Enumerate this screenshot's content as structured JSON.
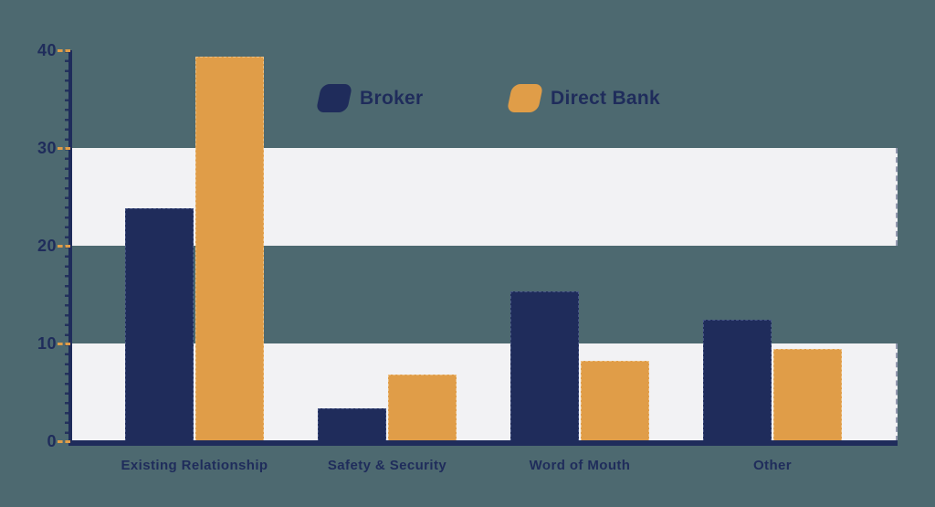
{
  "chart": {
    "background_color": "#4D6970",
    "band_color": "#F2F2F4",
    "axis_color": "#1F2C5B",
    "tick_mark_color": "#E09D48",
    "text_color": "#1F2C5B"
  },
  "legend": {
    "items": [
      {
        "label": "Broker",
        "color": "#1F2C5B"
      },
      {
        "label": "Direct Bank",
        "color": "#E09D48"
      }
    ]
  },
  "chart_data": {
    "type": "bar",
    "title": "",
    "xlabel": "",
    "ylabel": "",
    "categories": [
      "Existing Relationship",
      "Safety & Security",
      "Word of Mouth",
      "Other"
    ],
    "series": [
      {
        "name": "Broker",
        "color": "#1F2C5B",
        "values": [
          23.8,
          3.4,
          15.3,
          12.4
        ]
      },
      {
        "name": "Direct Bank",
        "color": "#E09D48",
        "values": [
          39.3,
          6.8,
          8.2,
          9.4
        ]
      }
    ],
    "ylim": [
      0,
      40
    ],
    "y_ticks": [
      0,
      10,
      20,
      30,
      40
    ],
    "grid_bands": [
      [
        0,
        10
      ],
      [
        20,
        30
      ]
    ],
    "grid": "alternating horizontal bands",
    "legend_position": "top-center"
  }
}
